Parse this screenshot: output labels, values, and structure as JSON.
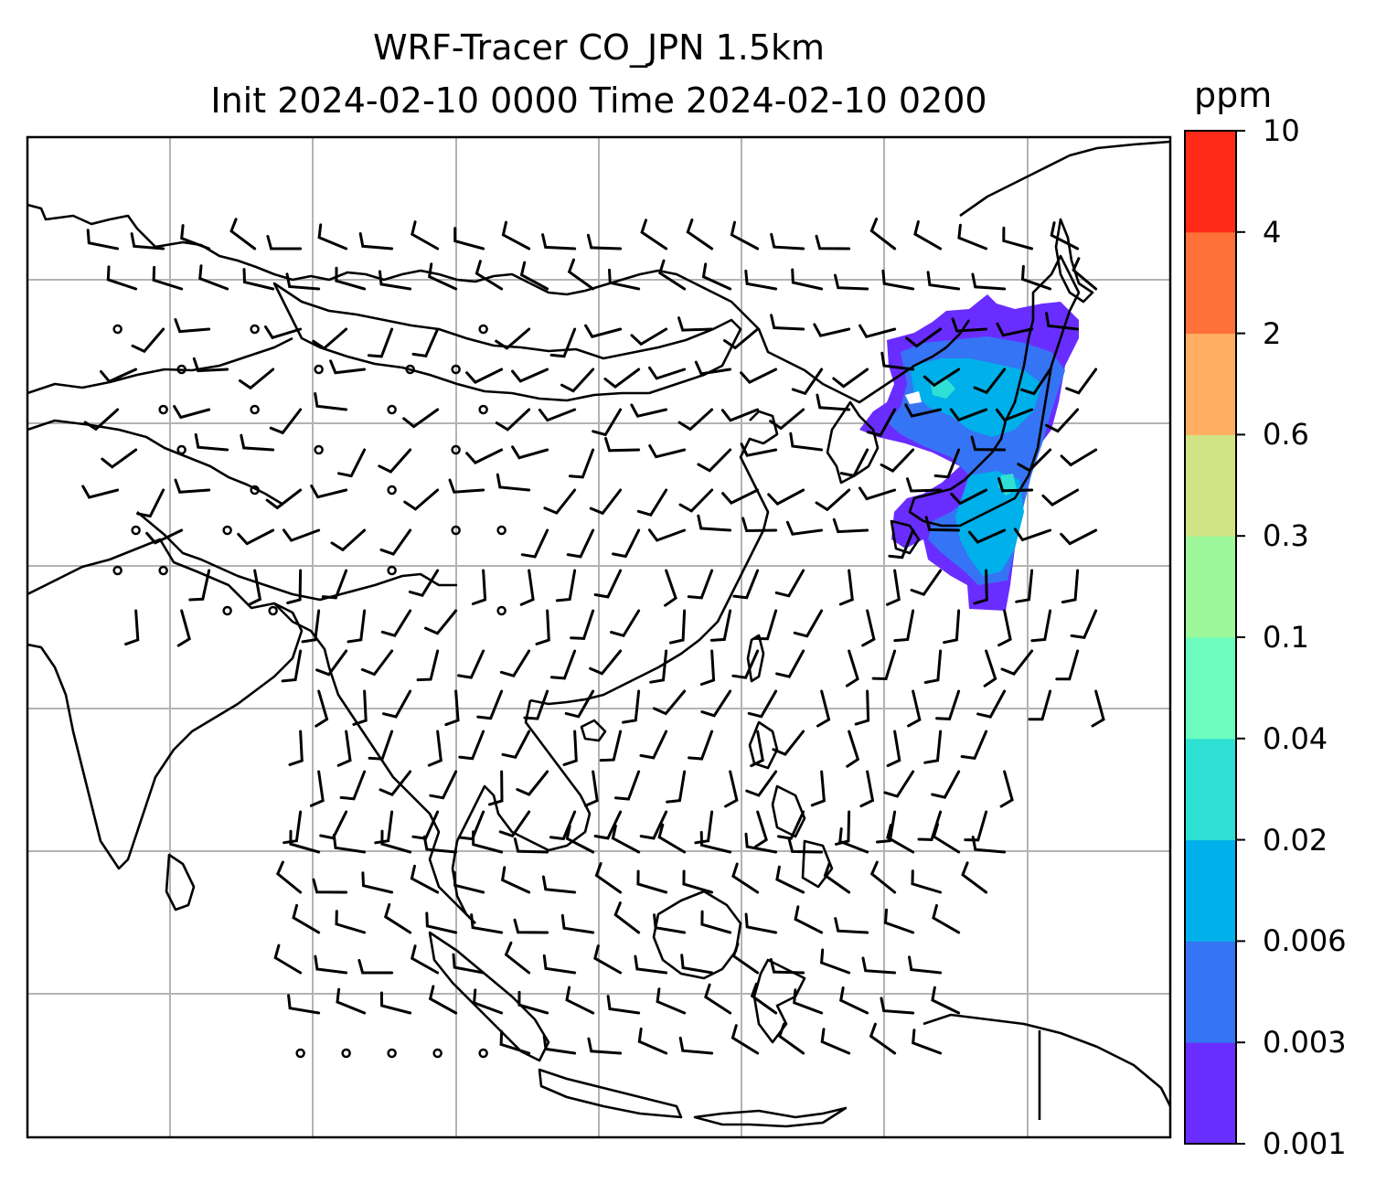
{
  "title": {
    "line1": "WRF-Tracer CO_JPN 1.5km",
    "line2": "Init 2024-02-10 0000 Time 2024-02-10 0200"
  },
  "colorbar": {
    "unit": "ppm",
    "ticks": [
      "0.001",
      "0.003",
      "0.006",
      "0.02",
      "0.04",
      "0.1",
      "0.3",
      "0.6",
      "2",
      "4",
      "10"
    ],
    "colors": [
      "#6a2dff",
      "#3574f4",
      "#00b0ea",
      "#2fe0d4",
      "#6cfcbe",
      "#9cf89a",
      "#d1e384",
      "#ffae62",
      "#ff7139",
      "#ff2a17"
    ]
  },
  "map": {
    "gridlines": true,
    "coastline_color": "#000000",
    "plume_colors": {
      "low": "#6a2dff",
      "mid": "#3574f4",
      "high": "#00b0ea",
      "peak": "#2fe0d4"
    }
  }
}
